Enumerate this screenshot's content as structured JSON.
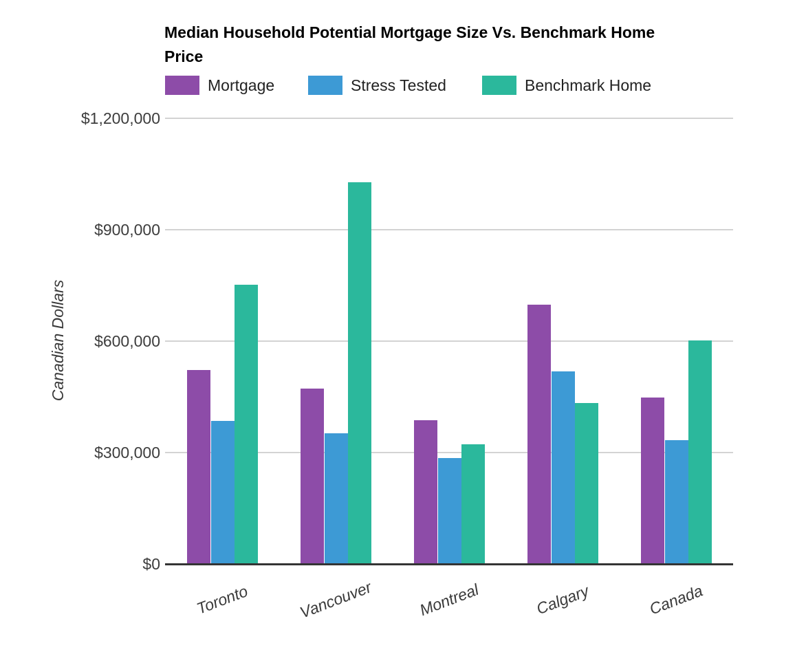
{
  "title_lines": [
    "Median Household Potential Mortgage Size Vs. Benchmark Home",
    "Price"
  ],
  "chart_data": {
    "type": "bar",
    "title": "Median Household Potential Mortgage Size Vs. Benchmark Home Price",
    "xlabel": "",
    "ylabel": "Canadian Dollars",
    "categories": [
      "Toronto",
      "Vancouver",
      "Montreal",
      "Calgary",
      "Canada"
    ],
    "series": [
      {
        "name": "Mortgage",
        "color": "#8d4ca8",
        "values": [
          523000,
          472000,
          387000,
          699000,
          448000
        ]
      },
      {
        "name": "Stress Tested",
        "color": "#3d9ad5",
        "values": [
          386000,
          351000,
          285000,
          518000,
          333000
        ]
      },
      {
        "name": "Benchmark Home",
        "color": "#2bb89c",
        "values": [
          752000,
          1028000,
          322000,
          433000,
          601000
        ]
      }
    ],
    "ylim": [
      0,
      1200000
    ],
    "yticks": [
      {
        "value": 0,
        "label": "$0"
      },
      {
        "value": 300000,
        "label": "$300,000"
      },
      {
        "value": 600000,
        "label": "$600,000"
      },
      {
        "value": 900000,
        "label": "$900,000"
      },
      {
        "value": 1200000,
        "label": "$1,200,000"
      }
    ],
    "grid": true,
    "legend_position": "top"
  }
}
